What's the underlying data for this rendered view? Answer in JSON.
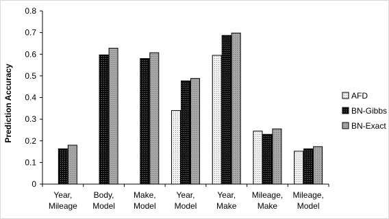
{
  "chart_data": {
    "type": "bar",
    "title": "",
    "xlabel": "",
    "ylabel": "Prediction Accuracy",
    "ylim": [
      0,
      0.8
    ],
    "yticks": [
      "0",
      "0.1",
      "0.2",
      "0.3",
      "0.4",
      "0.5",
      "0.6",
      "0.7",
      "0.8"
    ],
    "grid": false,
    "legend_position": "right",
    "categories": [
      [
        "Year,",
        "Mileage"
      ],
      [
        "Body,",
        "Model"
      ],
      [
        "Make,",
        "Model"
      ],
      [
        "Year,",
        "Model"
      ],
      [
        "Year,",
        "Make"
      ],
      [
        "Mileage,",
        "Make"
      ],
      [
        "Mileage,",
        "Model"
      ]
    ],
    "series": [
      {
        "name": "AFD",
        "pattern": "light-dotted",
        "values": [
          0,
          0,
          0,
          0.34,
          0.595,
          0.245,
          0.152
        ]
      },
      {
        "name": "BN-Gibbs",
        "pattern": "dark-dotted",
        "values": [
          0.163,
          0.597,
          0.58,
          0.477,
          0.687,
          0.23,
          0.163
        ]
      },
      {
        "name": "BN-Exact",
        "pattern": "gray-dotted",
        "values": [
          0.18,
          0.628,
          0.607,
          0.488,
          0.698,
          0.255,
          0.173
        ]
      }
    ]
  }
}
